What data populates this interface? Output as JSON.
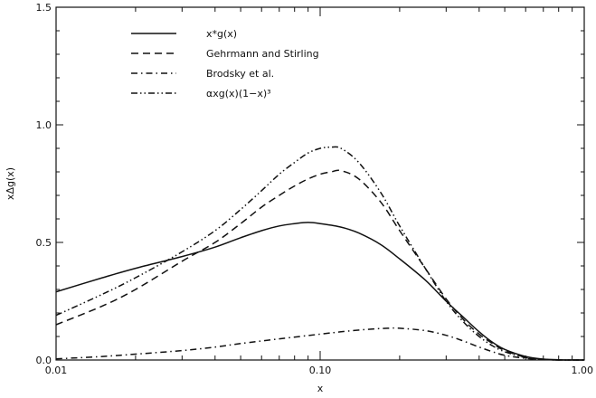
{
  "chart_data": {
    "type": "line",
    "title": "",
    "xlabel": "x",
    "ylabel": "xΔg(x)",
    "xscale": "log",
    "xlim": [
      0.01,
      1.0
    ],
    "ylim": [
      0.0,
      1.5
    ],
    "xticks": [
      {
        "value": 0.01,
        "label": "0.01"
      },
      {
        "value": 0.1,
        "label": "0.10"
      },
      {
        "value": 1.0,
        "label": "1.00"
      }
    ],
    "yticks": [
      {
        "value": 0.0,
        "label": "0.0"
      },
      {
        "value": 0.5,
        "label": "0.5"
      },
      {
        "value": 1.0,
        "label": "1.0"
      },
      {
        "value": 1.5,
        "label": "1.5"
      }
    ],
    "legend_position": "top-left",
    "grid": false,
    "series": [
      {
        "name": "x*g(x)",
        "dash": "solid",
        "x": [
          0.01,
          0.015,
          0.02,
          0.03,
          0.04,
          0.05,
          0.06,
          0.07,
          0.08,
          0.09,
          0.1,
          0.12,
          0.14,
          0.17,
          0.2,
          0.25,
          0.3,
          0.35,
          0.4,
          0.45,
          0.5,
          0.6,
          0.7,
          0.8,
          0.9,
          1.0
        ],
        "y": [
          0.29,
          0.35,
          0.39,
          0.44,
          0.48,
          0.52,
          0.55,
          0.57,
          0.58,
          0.585,
          0.58,
          0.565,
          0.54,
          0.49,
          0.43,
          0.34,
          0.25,
          0.18,
          0.12,
          0.075,
          0.045,
          0.015,
          0.004,
          0.001,
          0.0,
          0.0
        ]
      },
      {
        "name": "Gehrmann and Stirling",
        "dash": "dashed",
        "x": [
          0.01,
          0.015,
          0.02,
          0.03,
          0.04,
          0.05,
          0.06,
          0.07,
          0.08,
          0.09,
          0.1,
          0.11,
          0.12,
          0.14,
          0.17,
          0.2,
          0.25,
          0.3,
          0.35,
          0.4,
          0.45,
          0.5,
          0.6,
          0.7,
          0.8,
          0.9,
          1.0
        ],
        "y": [
          0.15,
          0.23,
          0.3,
          0.42,
          0.5,
          0.58,
          0.65,
          0.7,
          0.74,
          0.77,
          0.79,
          0.8,
          0.805,
          0.77,
          0.67,
          0.55,
          0.39,
          0.26,
          0.17,
          0.11,
          0.07,
          0.04,
          0.012,
          0.003,
          0.0,
          0.0,
          0.0
        ]
      },
      {
        "name": "Brodsky et al.",
        "dash": "dashdot",
        "x": [
          0.01,
          0.015,
          0.02,
          0.03,
          0.04,
          0.05,
          0.07,
          0.1,
          0.12,
          0.15,
          0.18,
          0.2,
          0.25,
          0.3,
          0.35,
          0.4,
          0.45,
          0.5,
          0.6,
          0.7,
          0.8,
          0.9,
          1.0
        ],
        "y": [
          0.005,
          0.015,
          0.025,
          0.04,
          0.055,
          0.07,
          0.09,
          0.11,
          0.12,
          0.13,
          0.135,
          0.135,
          0.125,
          0.105,
          0.08,
          0.055,
          0.035,
          0.02,
          0.007,
          0.002,
          0.0,
          0.0,
          0.0
        ]
      },
      {
        "name": "αxg(x)(1−x)³",
        "dash": "dashdotdot",
        "x": [
          0.01,
          0.015,
          0.02,
          0.03,
          0.04,
          0.05,
          0.06,
          0.07,
          0.08,
          0.09,
          0.1,
          0.11,
          0.12,
          0.14,
          0.17,
          0.2,
          0.25,
          0.3,
          0.35,
          0.4,
          0.45,
          0.5,
          0.6,
          0.7,
          0.8,
          0.9,
          1.0
        ],
        "y": [
          0.19,
          0.28,
          0.35,
          0.46,
          0.55,
          0.64,
          0.72,
          0.79,
          0.84,
          0.88,
          0.9,
          0.905,
          0.9,
          0.84,
          0.71,
          0.57,
          0.39,
          0.25,
          0.16,
          0.1,
          0.06,
          0.035,
          0.01,
          0.002,
          0.0,
          0.0,
          0.0
        ]
      }
    ]
  }
}
